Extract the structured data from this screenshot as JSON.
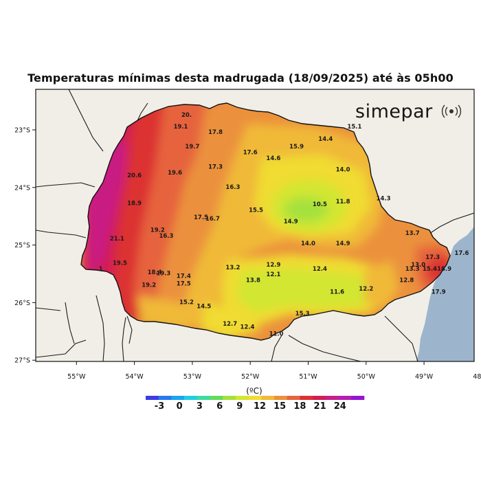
{
  "title": "Temperaturas mínimas desta madrugada (18/09/2025) até às 05h00",
  "brand": {
    "name": "simepar",
    "icon": "radio-wave-icon"
  },
  "axes": {
    "lon_ticks": [
      "55°W",
      "54°W",
      "53°W",
      "52°W",
      "51°W",
      "50°W",
      "49°W",
      "48°W"
    ],
    "lat_ticks": [
      "23°S",
      "24°S",
      "25°S",
      "26°S",
      "27°S"
    ],
    "lon_range": [
      -55.3,
      -47.7
    ],
    "lat_range": [
      -22.5,
      -27.0
    ]
  },
  "colorbar": {
    "unit": "(ºC)",
    "ticks": [
      "-3",
      "0",
      "3",
      "6",
      "9",
      "12",
      "15",
      "18",
      "21",
      "24"
    ],
    "colors": [
      "#3c3ce6",
      "#2878f0",
      "#19a5f0",
      "#23cde1",
      "#3cdca0",
      "#64dc5a",
      "#a5e13c",
      "#d2e632",
      "#f0dc32",
      "#f0b937",
      "#eb913c",
      "#e6643c",
      "#dc3232",
      "#d21e55",
      "#c81e8c",
      "#b41eb4",
      "#9614d2"
    ]
  },
  "colors": {
    "ocean": "#9db5cc",
    "land": "#f0eee6",
    "border": "#111111"
  },
  "station_labels": [
    {
      "text": "20.",
      "lon": -53.1,
      "lat": -22.75
    },
    {
      "text": "19.1",
      "lon": -53.2,
      "lat": -22.95
    },
    {
      "text": "17.8",
      "lon": -52.6,
      "lat": -23.05
    },
    {
      "text": "15.1",
      "lon": -50.2,
      "lat": -22.95
    },
    {
      "text": "19.7",
      "lon": -53.0,
      "lat": -23.3
    },
    {
      "text": "17.6",
      "lon": -52.0,
      "lat": -23.4
    },
    {
      "text": "15.9",
      "lon": -51.2,
      "lat": -23.3
    },
    {
      "text": "14.4",
      "lon": -50.7,
      "lat": -23.17
    },
    {
      "text": "14.6",
      "lon": -51.6,
      "lat": -23.5
    },
    {
      "text": "17.3",
      "lon": -52.6,
      "lat": -23.65
    },
    {
      "text": "19.6",
      "lon": -53.3,
      "lat": -23.75
    },
    {
      "text": "14.0",
      "lon": -50.4,
      "lat": -23.7
    },
    {
      "text": "20.6",
      "lon": -54.0,
      "lat": -23.8
    },
    {
      "text": "16.3",
      "lon": -52.3,
      "lat": -24.0
    },
    {
      "text": "14.3",
      "lon": -49.7,
      "lat": -24.2
    },
    {
      "text": "11.8",
      "lon": -50.4,
      "lat": -24.25
    },
    {
      "text": "10.5",
      "lon": -50.8,
      "lat": -24.3
    },
    {
      "text": "18.9",
      "lon": -54.0,
      "lat": -24.28
    },
    {
      "text": "15.5",
      "lon": -51.9,
      "lat": -24.4
    },
    {
      "text": "17.5",
      "lon": -52.85,
      "lat": -24.53
    },
    {
      "text": "16.7",
      "lon": -52.65,
      "lat": -24.55
    },
    {
      "text": "14.9",
      "lon": -51.3,
      "lat": -24.6
    },
    {
      "text": "19.2",
      "lon": -53.6,
      "lat": -24.75
    },
    {
      "text": "16.3",
      "lon": -53.45,
      "lat": -24.85
    },
    {
      "text": "13.7",
      "lon": -49.2,
      "lat": -24.8
    },
    {
      "text": "21.1",
      "lon": -54.3,
      "lat": -24.9
    },
    {
      "text": "14.0",
      "lon": -51.0,
      "lat": -24.98
    },
    {
      "text": "14.9",
      "lon": -50.4,
      "lat": -24.98
    },
    {
      "text": "17.6",
      "lon": -48.35,
      "lat": -25.15
    },
    {
      "text": "17.3",
      "lon": -48.85,
      "lat": -25.22
    },
    {
      "text": "19.5",
      "lon": -54.25,
      "lat": -25.32
    },
    {
      "text": "12.9",
      "lon": -51.6,
      "lat": -25.35
    },
    {
      "text": "13.0",
      "lon": -49.1,
      "lat": -25.35
    },
    {
      "text": "13.2",
      "lon": -52.3,
      "lat": -25.4
    },
    {
      "text": "12.4",
      "lon": -50.8,
      "lat": -25.42
    },
    {
      "text": "13.3",
      "lon": -49.2,
      "lat": -25.42
    },
    {
      "text": "15.4",
      "lon": -48.9,
      "lat": -25.42
    },
    {
      "text": "18.9",
      "lon": -48.65,
      "lat": -25.42
    },
    {
      "text": ".1",
      "lon": -54.6,
      "lat": -25.42
    },
    {
      "text": "18.4",
      "lon": -53.65,
      "lat": -25.48
    },
    {
      "text": "19.3",
      "lon": -53.5,
      "lat": -25.5
    },
    {
      "text": "12.1",
      "lon": -51.6,
      "lat": -25.52
    },
    {
      "text": "17.4",
      "lon": -53.15,
      "lat": -25.55
    },
    {
      "text": "13.8",
      "lon": -51.95,
      "lat": -25.62
    },
    {
      "text": "12.8",
      "lon": -49.3,
      "lat": -25.62
    },
    {
      "text": "17.5",
      "lon": -53.15,
      "lat": -25.68
    },
    {
      "text": "19.2",
      "lon": -53.75,
      "lat": -25.7
    },
    {
      "text": "12.2",
      "lon": -50.0,
      "lat": -25.77
    },
    {
      "text": "11.6",
      "lon": -50.5,
      "lat": -25.82
    },
    {
      "text": "17.9",
      "lon": -48.75,
      "lat": -25.82
    },
    {
      "text": "15.2",
      "lon": -53.1,
      "lat": -26.0
    },
    {
      "text": "14.5",
      "lon": -52.8,
      "lat": -26.07
    },
    {
      "text": "15.3",
      "lon": -51.1,
      "lat": -26.2
    },
    {
      "text": "12.7",
      "lon": -52.35,
      "lat": -26.38
    },
    {
      "text": "12.4",
      "lon": -52.05,
      "lat": -26.43
    },
    {
      "text": "11.0",
      "lon": -51.55,
      "lat": -26.55
    }
  ]
}
